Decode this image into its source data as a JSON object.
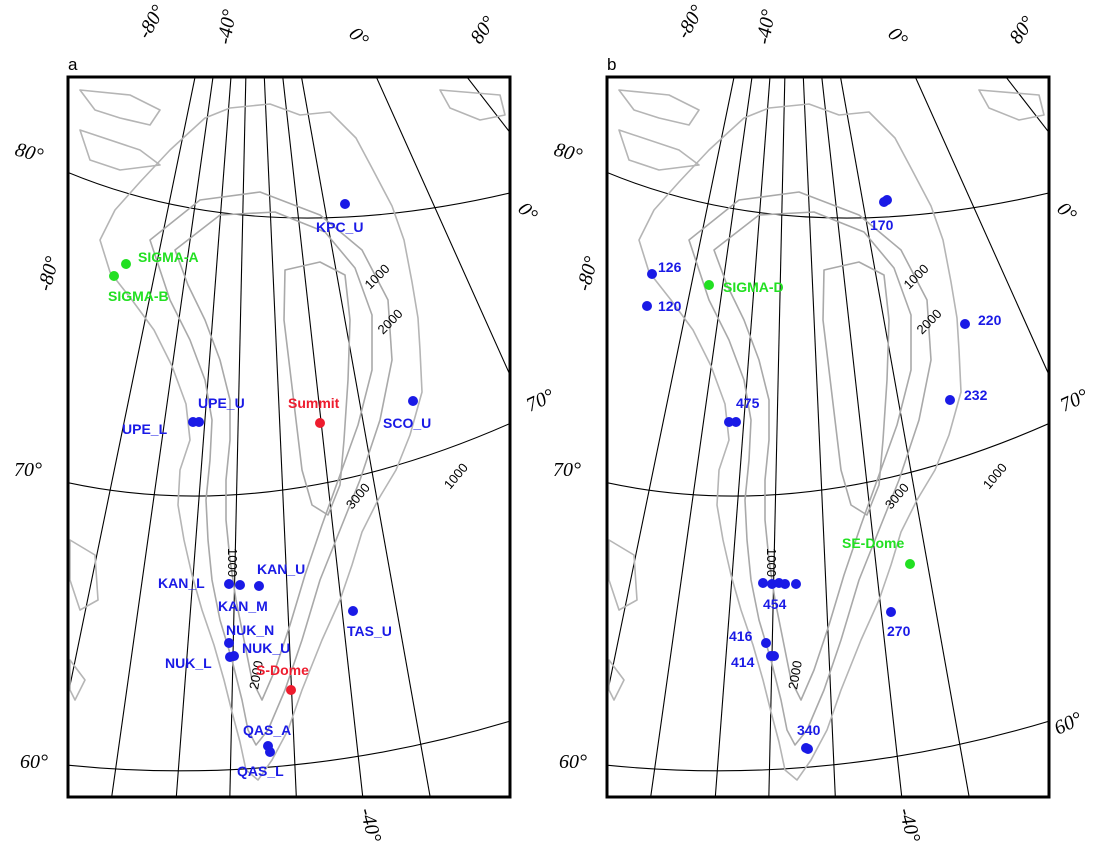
{
  "colors": {
    "blue_station": "#1a1ae6",
    "green_station": "#22e022",
    "red_station": "#ee1c2e",
    "coastline": "#b5b5b5",
    "contour": "#a9a9a9",
    "graticule": "#000000"
  },
  "panels": [
    {
      "letter": "a",
      "top_lon_labels": [
        "-80°",
        "-40°",
        "0°",
        "80°"
      ],
      "left_lat_labels": [
        "80°",
        "70°",
        "60°"
      ],
      "left_lon_label": "-80°",
      "right_lon_label": "0°",
      "right_lat_label": "70°",
      "bottom_lon_label": "-40°",
      "contour_labels": [
        "1000",
        "2000",
        "3000",
        "1000",
        "1000",
        "2000"
      ],
      "stations": [
        {
          "name": "SIGMA-A",
          "color": "green"
        },
        {
          "name": "SIGMA-B",
          "color": "green"
        },
        {
          "name": "KPC_U",
          "color": "blue"
        },
        {
          "name": "UPE_U",
          "color": "blue"
        },
        {
          "name": "UPE_L",
          "color": "blue"
        },
        {
          "name": "Summit",
          "color": "red"
        },
        {
          "name": "SCO_U",
          "color": "blue"
        },
        {
          "name": "KAN_L",
          "color": "blue"
        },
        {
          "name": "KAN_U",
          "color": "blue"
        },
        {
          "name": "KAN_M",
          "color": "blue"
        },
        {
          "name": "TAS_U",
          "color": "blue"
        },
        {
          "name": "NUK_N",
          "color": "blue"
        },
        {
          "name": "NUK_U",
          "color": "blue"
        },
        {
          "name": "NUK_L",
          "color": "blue"
        },
        {
          "name": "S-Dome",
          "color": "red"
        },
        {
          "name": "QAS_A",
          "color": "blue"
        },
        {
          "name": "QAS_L",
          "color": "blue"
        }
      ]
    },
    {
      "letter": "b",
      "top_lon_labels": [
        "-80°",
        "-40°",
        "0°",
        "80°"
      ],
      "left_lat_labels": [
        "80°",
        "70°",
        "60°"
      ],
      "left_lon_label": "-80°",
      "right_lon_label": "0°",
      "right_lat_label": "70°",
      "right_lat_label_2": "60°",
      "bottom_lon_label": "-40°",
      "contour_labels": [
        "1000",
        "2000",
        "3000",
        "1000",
        "1000",
        "2000"
      ],
      "stations": [
        {
          "name": "170",
          "color": "blue"
        },
        {
          "name": "126",
          "color": "blue"
        },
        {
          "name": "SIGMA-D",
          "color": "green"
        },
        {
          "name": "120",
          "color": "blue"
        },
        {
          "name": "220",
          "color": "blue"
        },
        {
          "name": "475",
          "color": "blue"
        },
        {
          "name": "232",
          "color": "blue"
        },
        {
          "name": "SE-Dome",
          "color": "green"
        },
        {
          "name": "454",
          "color": "blue"
        },
        {
          "name": "270",
          "color": "blue"
        },
        {
          "name": "416",
          "color": "blue"
        },
        {
          "name": "414",
          "color": "blue"
        },
        {
          "name": "340",
          "color": "blue"
        }
      ]
    }
  ]
}
